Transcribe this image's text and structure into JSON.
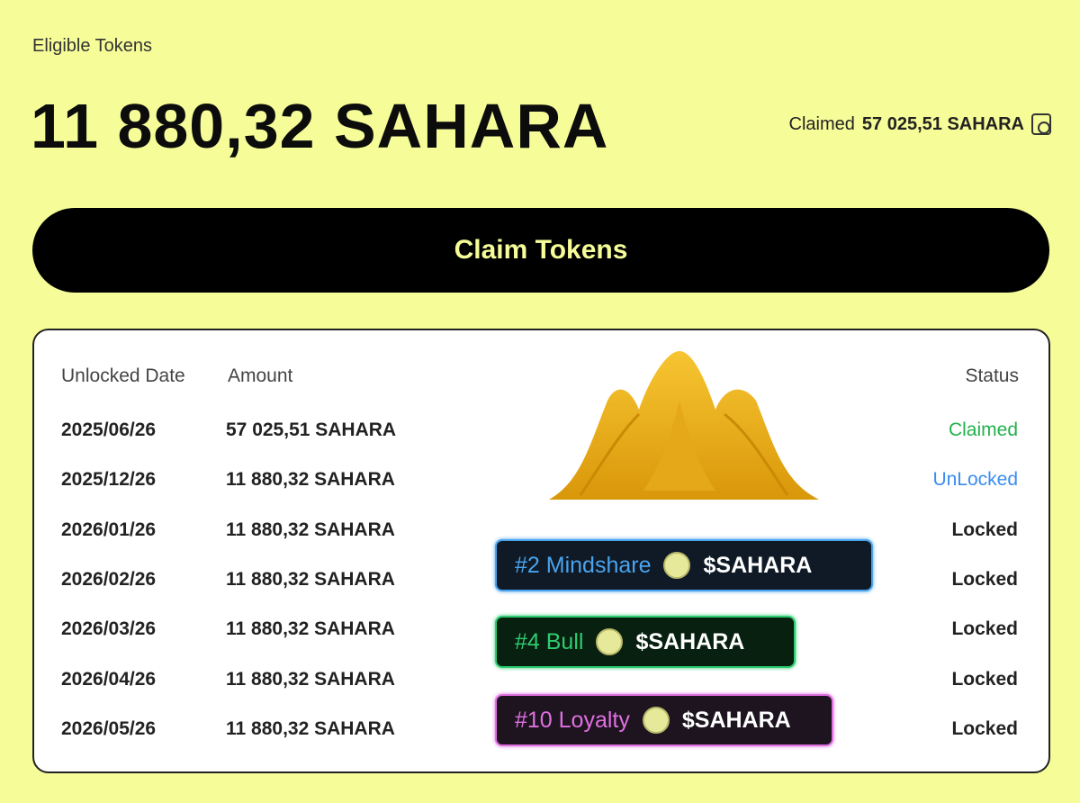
{
  "header": {
    "eyebrow": "Eligible Tokens",
    "eligible_amount": "11 880,32 SAHARA",
    "claimed_label": "Claimed",
    "claimed_amount": "57 025,51 SAHARA"
  },
  "claim_button": "Claim Tokens",
  "table": {
    "columns": [
      "Unlocked Date",
      "Amount",
      "Status"
    ],
    "rows": [
      {
        "date": "2025/06/26",
        "amount": "57 025,51 SAHARA",
        "status": "Claimed"
      },
      {
        "date": "2025/12/26",
        "amount": "11 880,32 SAHARA",
        "status": "UnLocked"
      },
      {
        "date": "2026/01/26",
        "amount": "11 880,32 SAHARA",
        "status": "Locked"
      },
      {
        "date": "2026/02/26",
        "amount": "11 880,32 SAHARA",
        "status": "Locked"
      },
      {
        "date": "2026/03/26",
        "amount": "11 880,32 SAHARA",
        "status": "Locked"
      },
      {
        "date": "2026/04/26",
        "amount": "11 880,32 SAHARA",
        "status": "Locked"
      },
      {
        "date": "2026/05/26",
        "amount": "11 880,32 SAHARA",
        "status": "Locked"
      }
    ]
  },
  "status_colors": {
    "Claimed": "#22b14c",
    "UnLocked": "#3b8cf0",
    "Locked": "#222222"
  },
  "badges": [
    {
      "rank": "#2 Mindshare",
      "token": "$SAHARA",
      "color": "#4aa3ee",
      "bg": "#0f1a26"
    },
    {
      "rank": "#4 Bull",
      "token": "$SAHARA",
      "color": "#2ecc71",
      "bg": "#08200f"
    },
    {
      "rank": "#10 Loyalty",
      "token": "$SAHARA",
      "color": "#e070e0",
      "bg": "#1e1420"
    }
  ]
}
